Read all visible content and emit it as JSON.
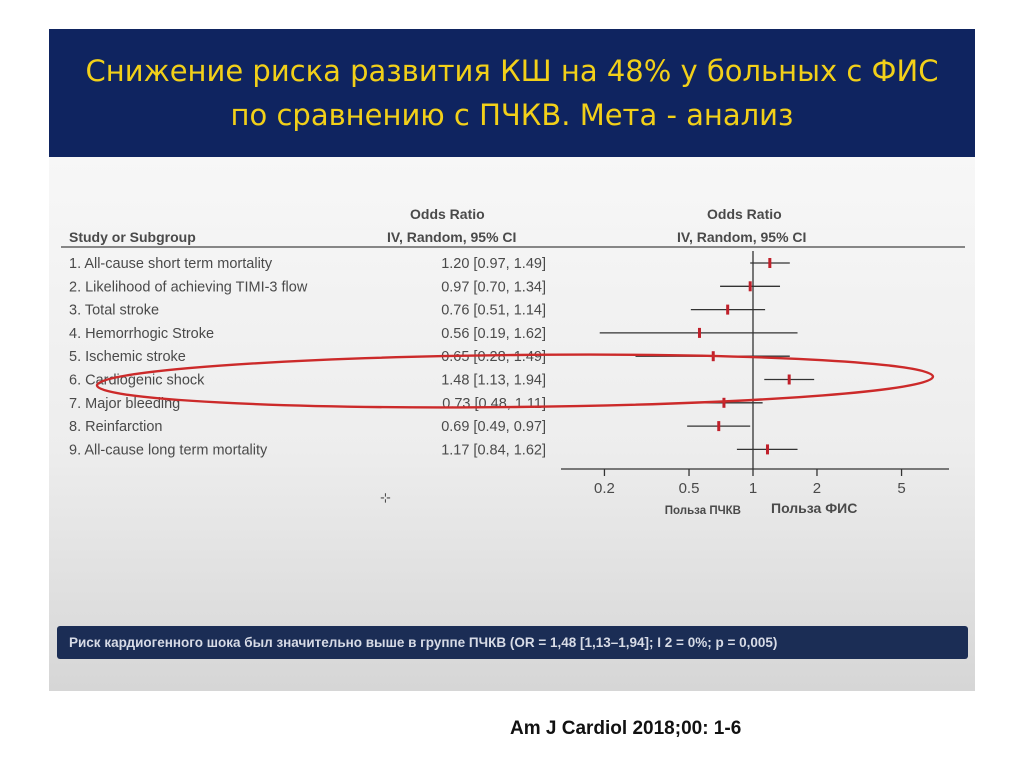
{
  "slide": {
    "title": "Снижение риска развития КШ на 48% у больных с ФИС по сравнению с ПЧКВ. Мета - анализ",
    "note": "Риск кардиогенного шока был значительно выше  в группе ПЧКВ (OR = 1,48 [1,13–1,94]; I 2 = 0%; p = 0,005)",
    "citation": "Am J Cardiol 2018;00: 1-6"
  },
  "chart_data": {
    "type": "forest",
    "headers": {
      "study_column": "Study or Subgroup",
      "or_column_line1": "Odds Ratio",
      "or_column_line2": "IV, Random, 95% CI",
      "plot_column_line1": "Odds Ratio",
      "plot_column_line2": "IV, Random, 95% CI"
    },
    "rows": [
      {
        "label": "1. All-cause short term mortality",
        "ci_text": "1.20 [0.97, 1.49]",
        "or": 1.2,
        "lo": 0.97,
        "hi": 1.49
      },
      {
        "label": "2. Likelihood of achieving TIMI-3 flow",
        "ci_text": "0.97 [0.70, 1.34]",
        "or": 0.97,
        "lo": 0.7,
        "hi": 1.34
      },
      {
        "label": "3. Total stroke",
        "ci_text": "0.76 [0.51, 1.14]",
        "or": 0.76,
        "lo": 0.51,
        "hi": 1.14
      },
      {
        "label": "4. Hemorrhogic Stroke",
        "ci_text": "0.56 [0.19, 1.62]",
        "or": 0.56,
        "lo": 0.19,
        "hi": 1.62
      },
      {
        "label": "5. Ischemic stroke",
        "ci_text": "0.65 [0.28, 1.49]",
        "or": 0.65,
        "lo": 0.28,
        "hi": 1.49
      },
      {
        "label": "6. Cardiogenic shock",
        "ci_text": "1.48 [1.13, 1.94]",
        "or": 1.48,
        "lo": 1.13,
        "hi": 1.94
      },
      {
        "label": "7. Major bleeding",
        "ci_text": "0.73 [0.48, 1.11]",
        "or": 0.73,
        "lo": 0.48,
        "hi": 1.11
      },
      {
        "label": "8. Reinfarction",
        "ci_text": "0.69 [0.49, 0.97]",
        "or": 0.69,
        "lo": 0.49,
        "hi": 0.97
      },
      {
        "label": "9. All-cause long term mortality",
        "ci_text": "1.17 [0.84, 1.62]",
        "or": 1.17,
        "lo": 0.84,
        "hi": 1.62
      }
    ],
    "x_scale": "log",
    "ticks": [
      0.2,
      0.5,
      1,
      2,
      5
    ],
    "tick_labels": [
      "0.2",
      "0.5",
      "1",
      "2",
      "5"
    ],
    "favours_left": "Польза ПЧКВ",
    "favours_right": "Польза ФИС",
    "highlighted_row": "6. Cardiogenic shock",
    "colors": {
      "point": "#c0202a",
      "highlight": "#d0202a",
      "line": "#333333"
    }
  }
}
